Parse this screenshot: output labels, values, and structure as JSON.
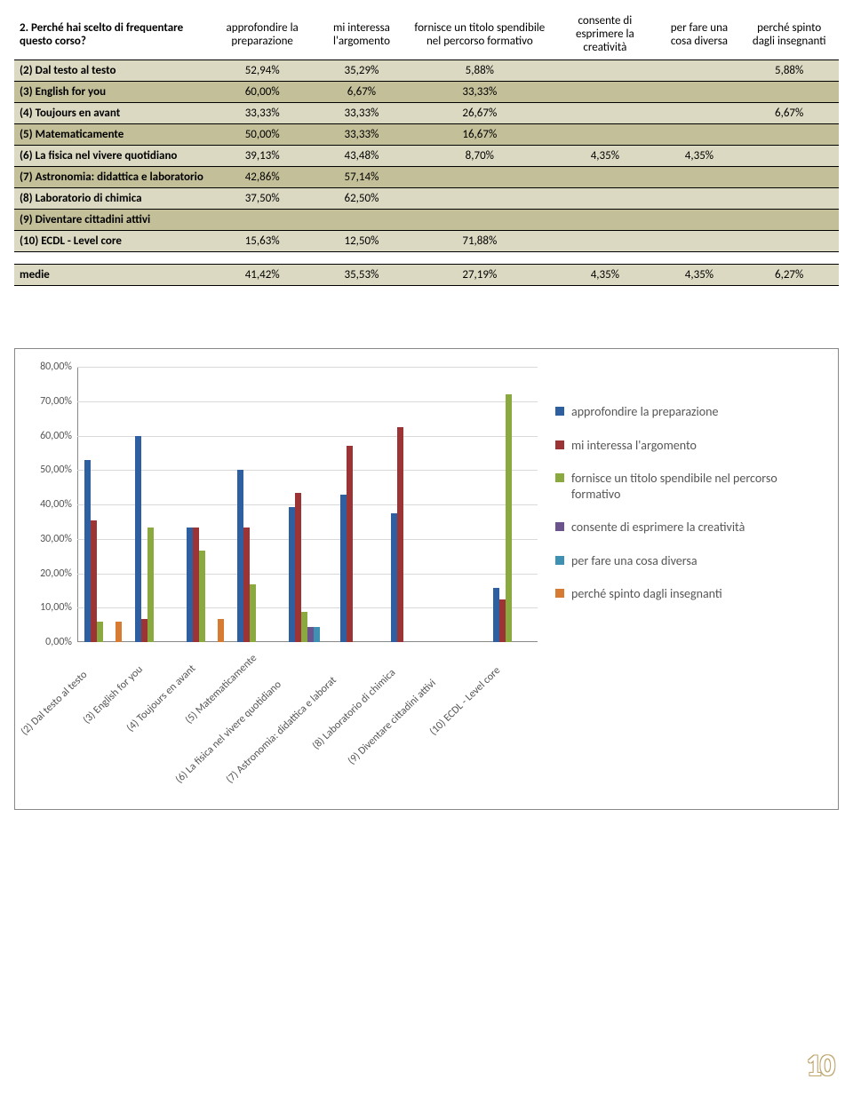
{
  "question": "2. Perché hai scelto di frequentare questo corso?",
  "columns": [
    "approfondire la preparazione",
    "mi interessa l'argomento",
    "fornisce un titolo spendibile nel percorso formativo",
    "consente di esprimere la creatività",
    "per fare una cosa diversa",
    "perché spinto dagli insegnanti"
  ],
  "rows": [
    {
      "label": "(2) Dal testo al testo",
      "vals": [
        "52,94%",
        "35,29%",
        "5,88%",
        "",
        "",
        "5,88%"
      ]
    },
    {
      "label": "(3) English for you",
      "vals": [
        "60,00%",
        "6,67%",
        "33,33%",
        "",
        "",
        ""
      ]
    },
    {
      "label": "(4) Toujours en avant",
      "vals": [
        "33,33%",
        "33,33%",
        "26,67%",
        "",
        "",
        "6,67%"
      ]
    },
    {
      "label": "(5) Matematicamente",
      "vals": [
        "50,00%",
        "33,33%",
        "16,67%",
        "",
        "",
        ""
      ]
    },
    {
      "label": "(6) La fisica nel vivere quotidiano",
      "vals": [
        "39,13%",
        "43,48%",
        "8,70%",
        "4,35%",
        "4,35%",
        ""
      ]
    },
    {
      "label": "(7) Astronomia: didattica e laboratorio",
      "vals": [
        "42,86%",
        "57,14%",
        "",
        "",
        "",
        ""
      ]
    },
    {
      "label": "(8) Laboratorio di chimica",
      "vals": [
        "37,50%",
        "62,50%",
        "",
        "",
        "",
        ""
      ]
    },
    {
      "label": "(9) Diventare cittadini attivi",
      "vals": [
        "",
        "",
        "",
        "",
        "",
        ""
      ]
    },
    {
      "label": "(10) ECDL - Level core",
      "vals": [
        "15,63%",
        "12,50%",
        "71,88%",
        "",
        "",
        ""
      ]
    }
  ],
  "medie": {
    "label": "medie",
    "vals": [
      "41,42%",
      "35,53%",
      "27,19%",
      "4,35%",
      "4,35%",
      "6,27%"
    ]
  },
  "chart": {
    "ymax": 80,
    "ystep": 10,
    "yticks": [
      "0,00%",
      "10,00%",
      "20,00%",
      "30,00%",
      "40,00%",
      "50,00%",
      "60,00%",
      "70,00%",
      "80,00%"
    ],
    "series_colors": [
      "#2e5fa0",
      "#9c3436",
      "#8aa93f",
      "#6b548e",
      "#3e91b3",
      "#d87b32"
    ],
    "legend_labels": [
      "approfondire la preparazione",
      "mi interessa l'argomento",
      "fornisce un titolo spendibile nel percorso formativo",
      "consente di esprimere la creatività",
      "per fare una cosa diversa",
      "perché spinto dagli insegnanti"
    ],
    "categories": [
      "(2) Dal testo al testo",
      "(3) English for you",
      "(4) Toujours en avant",
      "(5) Matematicamente",
      "(6) La fisica nel vivere quotidiano",
      "(7) Astronomia: didattica e laborat",
      "(8) Laboratorio di chimica",
      "(9) Diventare cittadini attivi",
      "(10) ECDL - Level core"
    ],
    "values": [
      [
        52.94,
        35.29,
        5.88,
        0,
        0,
        5.88
      ],
      [
        60.0,
        6.67,
        33.33,
        0,
        0,
        0
      ],
      [
        33.33,
        33.33,
        26.67,
        0,
        0,
        6.67
      ],
      [
        50.0,
        33.33,
        16.67,
        0,
        0,
        0
      ],
      [
        39.13,
        43.48,
        8.7,
        4.35,
        4.35,
        0
      ],
      [
        42.86,
        57.14,
        0,
        0,
        0,
        0
      ],
      [
        37.5,
        62.5,
        0,
        0,
        0,
        0
      ],
      [
        0,
        0,
        0,
        0,
        0,
        0
      ],
      [
        15.63,
        12.5,
        71.88,
        0,
        0,
        0
      ]
    ]
  },
  "page_number": "10",
  "stripe_tan": "#dcd9c2",
  "stripe_olive": "#c3bf98"
}
